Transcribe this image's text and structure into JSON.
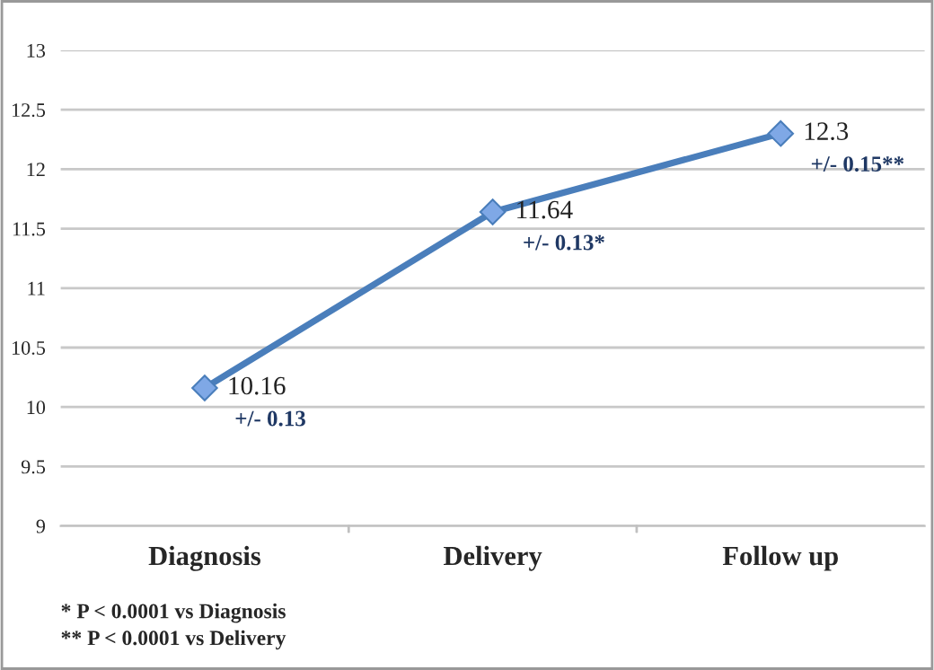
{
  "chart_data": {
    "type": "line",
    "categories": [
      "Diagnosis",
      "Delivery",
      "Follow up"
    ],
    "series": [
      {
        "color": "#4a7ebb",
        "values": [
          10.16,
          11.64,
          12.3
        ]
      }
    ],
    "ylim": [
      9,
      13
    ],
    "yticks": [
      9,
      9.5,
      10,
      10.5,
      11,
      11.5,
      12,
      12.5,
      13
    ],
    "grid": "y",
    "marker": "diamond",
    "line_style": "solid",
    "data_labels": true,
    "annotations": [
      {
        "text": "+/- 0.13",
        "x": "Diagnosis",
        "y": 10.16
      },
      {
        "text": "+/- 0.13*",
        "x": "Delivery",
        "y": 11.64
      },
      {
        "text": "+/- 0.15**",
        "x": "Follow up",
        "y": 12.3
      },
      "* P < 0.0001 vs Diagnosis",
      "** P < 0.0001 vs Delivery"
    ]
  }
}
